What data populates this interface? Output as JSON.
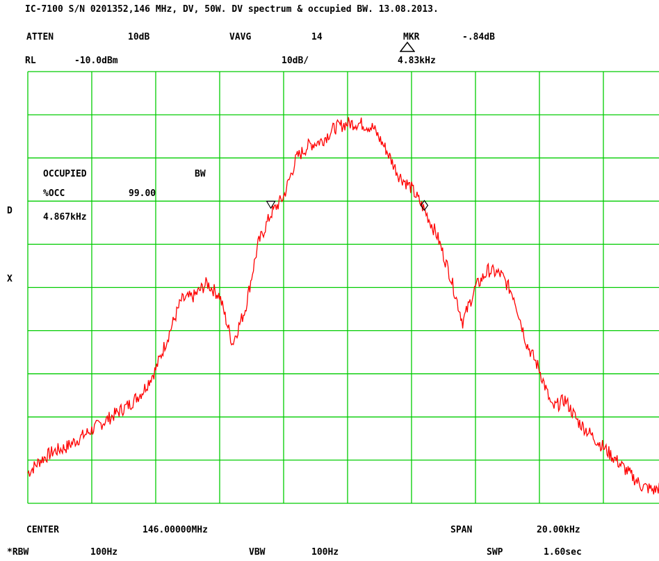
{
  "title": "IC-7100 S/N 0201352,146 MHz, DV, 50W. DV spectrum & occupied BW. 13.08.2013.",
  "header": {
    "atten_label": "ATTEN",
    "atten_value": "10dB",
    "vavg_label": "VAVG",
    "vavg_value": "14",
    "mkr_label": "MKR",
    "mkr_value": "-.84dB",
    "rl_label": "RL",
    "rl_value": "-10.0dBm",
    "scale_value": "10dB/",
    "mkr_freq": "4.83kHz"
  },
  "occupied": {
    "label": "OCCUPIED",
    "bw_label": "BW",
    "pct_label": "%OCC",
    "pct_value": "99.00",
    "bw_value": "4.867kHz"
  },
  "side": {
    "d_label": "D",
    "x_label": "X"
  },
  "footer": {
    "center_label": "CENTER",
    "center_value": "146.00000MHz",
    "span_label": "SPAN",
    "span_value": "20.00kHz",
    "rbw_label": "*RBW",
    "rbw_value": "100Hz",
    "vbw_label": "VBW",
    "vbw_value": "100Hz",
    "swp_label": "SWP",
    "swp_value": "1.60sec"
  },
  "colors": {
    "grid": "#00cc00",
    "trace": "#ff0000",
    "text": "#000000"
  },
  "chart_data": {
    "type": "line",
    "title": "",
    "xlabel": "",
    "ylabel": "",
    "xlim": [
      -10,
      10
    ],
    "ylim": [
      -110,
      -10
    ],
    "grid": true,
    "x_unit": "kHz offset from center",
    "y_unit": "dBm",
    "markers": [
      {
        "type": "triangle-down",
        "x": -2.4,
        "y": -41
      },
      {
        "type": "diamond",
        "x": 2.4,
        "y": -41
      }
    ],
    "series": [
      {
        "x": [
          -10,
          -9.6,
          -9.2,
          -8.8,
          -8.4,
          -8.0,
          -7.6,
          -7.2,
          -6.8,
          -6.4,
          -6.0,
          -5.6,
          -5.2,
          -4.8,
          -4.4,
          -4.0,
          -3.6,
          -3.2,
          -2.8,
          -2.4,
          -2.0,
          -1.6,
          -1.2,
          -0.8,
          -0.4,
          0.0,
          0.4,
          0.8,
          1.2,
          1.6,
          2.0,
          2.4,
          2.8,
          3.2,
          3.6,
          4.0,
          4.4,
          4.8,
          5.2,
          5.6,
          6.0,
          6.4,
          6.8,
          7.2,
          7.6,
          8.0,
          8.4,
          8.8,
          9.2,
          9.6,
          10.0
        ],
        "y": [
          -103,
          -100,
          -98,
          -97,
          -95,
          -93,
          -91,
          -89,
          -87,
          -84,
          -79,
          -71,
          -63,
          -62,
          -59,
          -62,
          -73,
          -65,
          -50,
          -43,
          -39,
          -30,
          -27,
          -26,
          -23,
          -22,
          -22,
          -23,
          -28,
          -34,
          -37,
          -42,
          -48,
          -57,
          -68,
          -60,
          -56,
          -57,
          -62,
          -73,
          -79,
          -88,
          -86,
          -91,
          -94,
          -97,
          -100,
          -103,
          -106,
          -107,
          -105
        ]
      }
    ]
  }
}
